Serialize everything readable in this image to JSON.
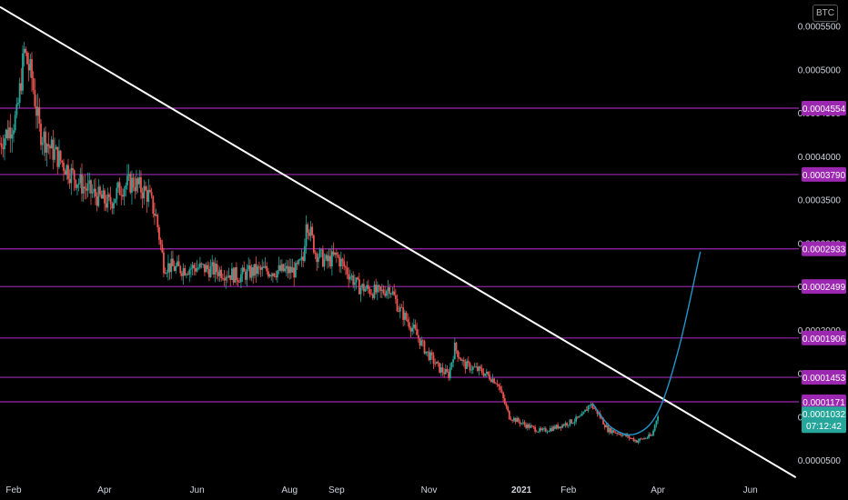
{
  "currency_label": "BTC",
  "current_price": {
    "value": "0.0001032",
    "countdown": "07:12:42",
    "color": "#26a69a"
  },
  "colors": {
    "up": "#26a69a",
    "down": "#ef5350",
    "level": "#9c27b0",
    "trendline": "#ffffff",
    "curve": "#2196c8",
    "axis_text": "#d1d4dc"
  },
  "chart_data": {
    "type": "candlestick",
    "title": "",
    "xlabel": "",
    "ylabel": "",
    "ylim": [
      2.7e-05,
      0.00058
    ],
    "y_ticks": [
      "0.0005500",
      "0.0005000",
      "0.0004500",
      "0.0004000",
      "0.0003500",
      "0.0003000",
      "0.0002500",
      "0.0002000",
      "0.0001500",
      "0.0001000",
      "0.0000500"
    ],
    "y_tick_values": [
      0.00055,
      0.0005,
      0.00045,
      0.0004,
      0.00035,
      0.0003,
      0.00025,
      0.0002,
      0.00015,
      0.0001,
      5e-05
    ],
    "x_ticks": [
      {
        "label": "Feb",
        "date": "2020-02-01"
      },
      {
        "label": "Apr",
        "date": "2020-04-01"
      },
      {
        "label": "Jun",
        "date": "2020-06-01"
      },
      {
        "label": "Aug",
        "date": "2020-08-01"
      },
      {
        "label": "Sep",
        "date": "2020-09-01"
      },
      {
        "label": "Nov",
        "date": "2020-11-01"
      },
      {
        "label": "2021",
        "date": "2021-01-01"
      },
      {
        "label": "Feb",
        "date": "2021-02-01"
      },
      {
        "label": "Apr",
        "date": "2021-04-01"
      },
      {
        "label": "Jun",
        "date": "2021-06-01"
      }
    ],
    "xlim": [
      "2020-01-23",
      "2021-07-03"
    ],
    "price_path": [
      [
        "2020-01-23",
        0.000415
      ],
      [
        "2020-02-03",
        0.000445
      ],
      [
        "2020-02-08",
        0.00052
      ],
      [
        "2020-02-13",
        0.00049
      ],
      [
        "2020-02-18",
        0.00043
      ],
      [
        "2020-02-25",
        0.00041
      ],
      [
        "2020-03-03",
        0.000395
      ],
      [
        "2020-03-10",
        0.00038
      ],
      [
        "2020-03-18",
        0.000365
      ],
      [
        "2020-03-26",
        0.000355
      ],
      [
        "2020-04-04",
        0.000345
      ],
      [
        "2020-04-12",
        0.000365
      ],
      [
        "2020-04-20",
        0.00037
      ],
      [
        "2020-04-30",
        0.000355
      ],
      [
        "2020-05-05",
        0.00033
      ],
      [
        "2020-05-10",
        0.000275
      ],
      [
        "2020-05-20",
        0.00027
      ],
      [
        "2020-06-01",
        0.000272
      ],
      [
        "2020-06-15",
        0.000268
      ],
      [
        "2020-06-28",
        0.000262
      ],
      [
        "2020-07-10",
        0.000268
      ],
      [
        "2020-07-25",
        0.000268
      ],
      [
        "2020-08-05",
        0.000268
      ],
      [
        "2020-08-10",
        0.00028
      ],
      [
        "2020-08-12",
        0.00033
      ],
      [
        "2020-08-18",
        0.00029
      ],
      [
        "2020-08-25",
        0.000278
      ],
      [
        "2020-09-01",
        0.000285
      ],
      [
        "2020-09-08",
        0.000268
      ],
      [
        "2020-09-15",
        0.00025
      ],
      [
        "2020-09-30",
        0.000242
      ],
      [
        "2020-10-06",
        0.00025
      ],
      [
        "2020-10-12",
        0.000225
      ],
      [
        "2020-10-22",
        0.0002
      ],
      [
        "2020-10-30",
        0.000175
      ],
      [
        "2020-11-08",
        0.000155
      ],
      [
        "2020-11-14",
        0.000148
      ],
      [
        "2020-11-18",
        0.00018
      ],
      [
        "2020-11-24",
        0.00016
      ],
      [
        "2020-12-06",
        0.000152
      ],
      [
        "2020-12-16",
        0.00014
      ],
      [
        "2020-12-24",
        0.0001
      ],
      [
        "2021-01-04",
        9e-05
      ],
      [
        "2021-01-14",
        8.3e-05
      ],
      [
        "2021-01-24",
        8.8e-05
      ],
      [
        "2021-02-04",
        9.5e-05
      ],
      [
        "2021-02-10",
        0.0001
      ],
      [
        "2021-02-15",
        0.000115
      ],
      [
        "2021-02-20",
        0.000105
      ],
      [
        "2021-02-27",
        8.5e-05
      ],
      [
        "2021-03-08",
        8e-05
      ],
      [
        "2021-03-18",
        7.2e-05
      ],
      [
        "2021-03-28",
        7.8e-05
      ],
      [
        "2021-04-01",
        0.000103
      ]
    ],
    "horizontal_levels": [
      {
        "label": "0.0004554",
        "value": 0.0004554
      },
      {
        "label": "0.0003790",
        "value": 0.000379
      },
      {
        "label": "0.0002933",
        "value": 0.0002933
      },
      {
        "label": "0.0002499",
        "value": 0.0002499
      },
      {
        "label": "0.0001906",
        "value": 0.0001906
      },
      {
        "label": "0.0001453",
        "value": 0.0001453
      },
      {
        "label": "0.0001171",
        "value": 0.0001171
      }
    ],
    "trendline": [
      [
        "2020-01-23",
        0.000572
      ],
      [
        "2021-07-01",
        3e-05
      ]
    ],
    "projection_curve": [
      [
        "2021-02-17",
        0.000115
      ],
      [
        "2021-03-01",
        8.8e-05
      ],
      [
        "2021-03-17",
        8e-05
      ],
      [
        "2021-04-01",
        0.000105
      ],
      [
        "2021-04-15",
        0.00018
      ],
      [
        "2021-04-29",
        0.00029
      ]
    ],
    "grid": false,
    "legend": "none"
  }
}
